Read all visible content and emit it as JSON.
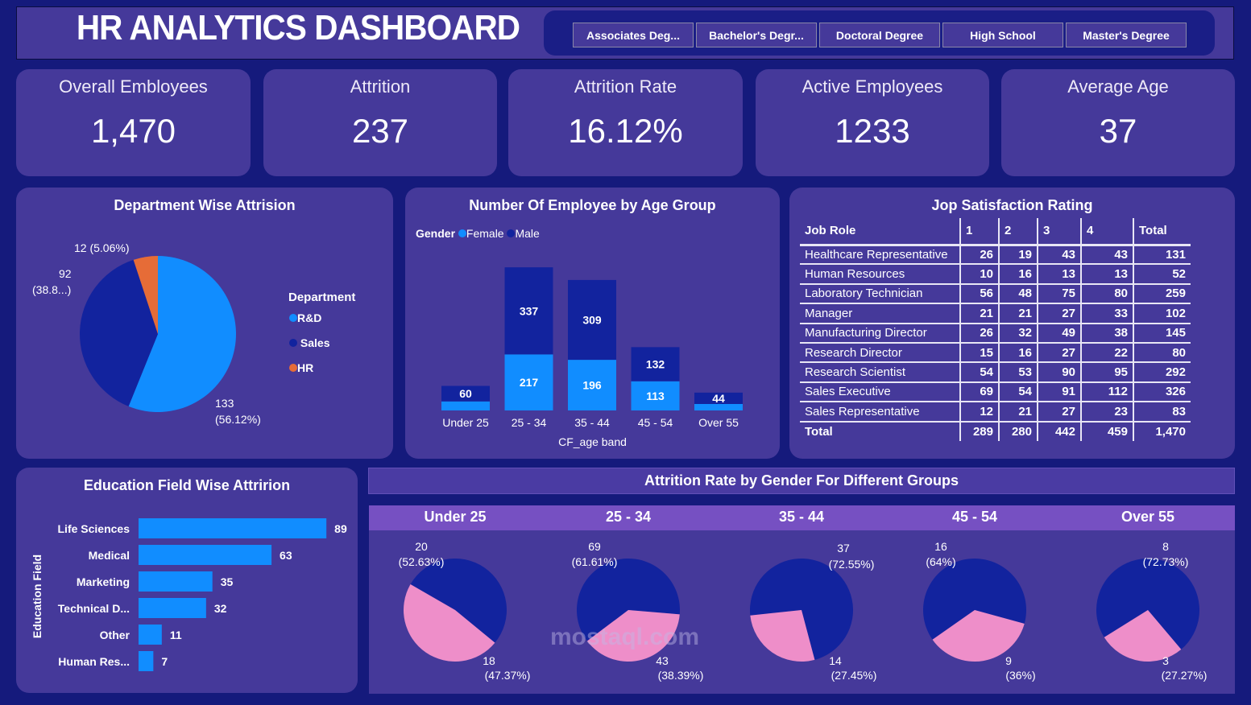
{
  "header": {
    "title": "HR ANALYTICS DASHBOARD"
  },
  "slicer": {
    "options": [
      "Associates Deg...",
      "Bachelor's Degr...",
      "Doctoral Degree",
      "High School",
      "Master's Degree"
    ]
  },
  "kpis": [
    {
      "title": "Overall Embloyees",
      "value": "1,470"
    },
    {
      "title": "Attrition",
      "value": "237"
    },
    {
      "title": "Attrition Rate",
      "value": "16.12%"
    },
    {
      "title": "Active Employees",
      "value": "1233"
    },
    {
      "title": "Average Age",
      "value": "37"
    }
  ],
  "colors": {
    "background": "#151a7c",
    "panel": "#45399a",
    "light_blue": "#118dff",
    "navy": "#12239e",
    "orange": "#e66c37",
    "pink": "#ee8ec9",
    "subheader": "#7650c2"
  },
  "chart_data": [
    {
      "type": "pie",
      "title": "Department Wise Attrision",
      "legend_title": "Department",
      "legend_position": "right",
      "slices": [
        {
          "name": "R&D",
          "value": 133,
          "label": "133",
          "pct": "(56.12%)",
          "color": "#118dff"
        },
        {
          "name": "Sales",
          "value": 92,
          "label": "92",
          "pct": "(38.8...)",
          "color": "#12239e"
        },
        {
          "name": "HR",
          "value": 12,
          "label": "12 (5.06%)",
          "pct": "",
          "color": "#e66c37"
        }
      ]
    },
    {
      "type": "bar",
      "stacked": true,
      "title": "Number Of Employee by Age Group",
      "xlabel": "CF_age band",
      "legend_title": "Gender",
      "legend_position": "top-left",
      "categories": [
        "Under 25",
        "25 - 34",
        "35 - 44",
        "45 - 54",
        "Over 55"
      ],
      "series": [
        {
          "name": "Female",
          "color": "#118dff",
          "values": [
            35,
            217,
            196,
            113,
            25
          ],
          "labels": [
            "",
            "217",
            "196",
            "113",
            ""
          ]
        },
        {
          "name": "Male",
          "color": "#12239e",
          "values": [
            60,
            337,
            309,
            132,
            44
          ],
          "labels": [
            "60",
            "337",
            "309",
            "132",
            "44"
          ]
        }
      ]
    },
    {
      "type": "table",
      "title": "Jop Satisfaction Rating",
      "columns": [
        "Job Role",
        "1",
        "2",
        "3",
        "4",
        "Total"
      ],
      "rows": [
        [
          "Healthcare Representative",
          "26",
          "19",
          "43",
          "43",
          "131"
        ],
        [
          "Human Resources",
          "10",
          "16",
          "13",
          "13",
          "52"
        ],
        [
          "Laboratory Technician",
          "56",
          "48",
          "75",
          "80",
          "259"
        ],
        [
          "Manager",
          "21",
          "21",
          "27",
          "33",
          "102"
        ],
        [
          "Manufacturing Director",
          "26",
          "32",
          "49",
          "38",
          "145"
        ],
        [
          "Research Director",
          "15",
          "16",
          "27",
          "22",
          "80"
        ],
        [
          "Research Scientist",
          "54",
          "53",
          "90",
          "95",
          "292"
        ],
        [
          "Sales Executive",
          "69",
          "54",
          "91",
          "112",
          "326"
        ],
        [
          "Sales Representative",
          "12",
          "21",
          "27",
          "23",
          "83"
        ]
      ],
      "total": [
        "Total",
        "289",
        "280",
        "442",
        "459",
        "1,470"
      ]
    },
    {
      "type": "bar",
      "orientation": "horizontal",
      "title": "Education Field Wise Attririon",
      "ylabel": "Education Field",
      "categories": [
        "Life Sciences",
        "Medical",
        "Marketing",
        "Technical D...",
        "Other",
        "Human Res..."
      ],
      "values": [
        89,
        63,
        35,
        32,
        11,
        7
      ]
    },
    {
      "type": "pie",
      "title": "Attrition Rate by Gender For Different Groups",
      "groups": [
        {
          "name": "Under 25",
          "male": 20,
          "male_pct": "(52.63%)",
          "female": 18,
          "female_pct": "(47.37%)"
        },
        {
          "name": "25 - 34",
          "male": 69,
          "male_pct": "(61.61%)",
          "female": 43,
          "female_pct": "(38.39%)"
        },
        {
          "name": "35 - 44",
          "male": 37,
          "male_pct": "(72.55%)",
          "female": 14,
          "female_pct": "(27.45%)"
        },
        {
          "name": "45 - 54",
          "male": 16,
          "male_pct": "(64%)",
          "female": 9,
          "female_pct": "(36%)"
        },
        {
          "name": "Over 55",
          "male": 8,
          "male_pct": "(72.73%)",
          "female": 3,
          "female_pct": "(27.27%)"
        }
      ]
    }
  ],
  "watermark": "mostaql.com"
}
